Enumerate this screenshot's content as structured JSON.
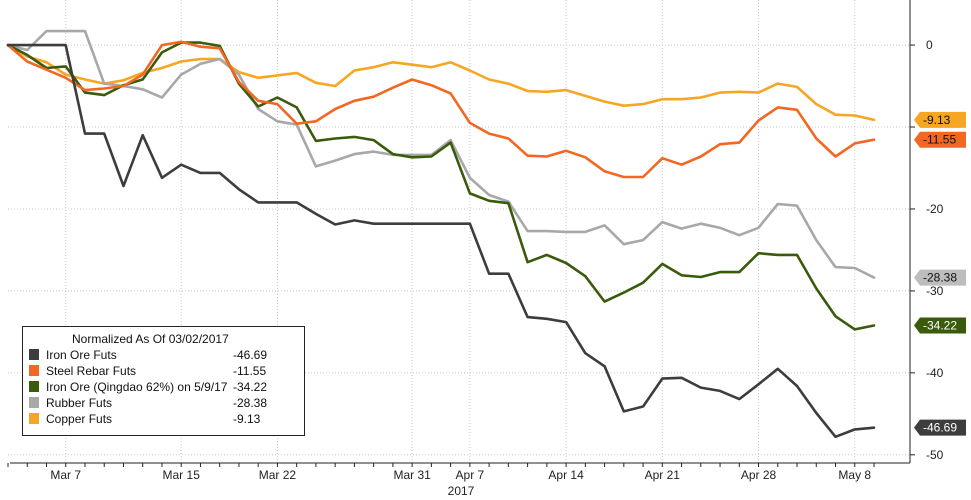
{
  "chart_data": {
    "type": "line",
    "x_dates": [
      "2017-03-02",
      "2017-03-03",
      "2017-03-06",
      "2017-03-07",
      "2017-03-08",
      "2017-03-09",
      "2017-03-10",
      "2017-03-13",
      "2017-03-14",
      "2017-03-15",
      "2017-03-16",
      "2017-03-17",
      "2017-03-20",
      "2017-03-21",
      "2017-03-22",
      "2017-03-23",
      "2017-03-24",
      "2017-03-27",
      "2017-03-28",
      "2017-03-29",
      "2017-03-30",
      "2017-03-31",
      "2017-04-05",
      "2017-04-06",
      "2017-04-07",
      "2017-04-10",
      "2017-04-11",
      "2017-04-12",
      "2017-04-13",
      "2017-04-14",
      "2017-04-17",
      "2017-04-18",
      "2017-04-19",
      "2017-04-20",
      "2017-04-21",
      "2017-04-24",
      "2017-04-25",
      "2017-04-26",
      "2017-04-27",
      "2017-04-28",
      "2017-05-02",
      "2017-05-03",
      "2017-05-04",
      "2017-05-05",
      "2017-05-08",
      "2017-05-09"
    ],
    "x_tick_labels": [
      {
        "date": "2017-03-07",
        "label": "Mar 7"
      },
      {
        "date": "2017-03-15",
        "label": "Mar 15"
      },
      {
        "date": "2017-03-22",
        "label": "Mar 22"
      },
      {
        "date": "2017-03-31",
        "label": "Mar 31"
      },
      {
        "date": "2017-04-07",
        "label": "Apr 7"
      },
      {
        "date": "2017-04-14",
        "label": "Apr 14"
      },
      {
        "date": "2017-04-21",
        "label": "Apr 21"
      },
      {
        "date": "2017-04-28",
        "label": "Apr 28"
      },
      {
        "date": "2017-05-08",
        "label": "May 8"
      }
    ],
    "year_label": "2017",
    "y_ticks": [
      0,
      -10,
      -20,
      -30,
      -40,
      -50
    ],
    "y_tick_labels": [
      "0",
      "",
      "-20",
      "-30",
      "-40",
      "-50"
    ],
    "ylim": [
      -51,
      5.5
    ],
    "grid": "dotted",
    "legend_placement": "bottom-left",
    "legend_title": "Normalized As Of 03/02/2017",
    "series": [
      {
        "name": "Iron Ore Futs",
        "color": "#3d3d3d",
        "tag_fill": "#3d3d3d",
        "tag_text_color": "#ffffff",
        "last_label": "-46.69",
        "legend_value": "-46.69",
        "values": [
          0,
          0,
          0,
          0,
          -10.8,
          -10.8,
          -17.2,
          -11,
          -16.2,
          -14.6,
          -15.6,
          -15.6,
          -17.6,
          -19.2,
          -19.2,
          -19.2,
          -20.6,
          -21.9,
          -21.4,
          -21.8,
          -21.8,
          -21.8,
          -21.8,
          -21.8,
          -21.8,
          -27.9,
          -27.9,
          -33.2,
          -33.4,
          -33.8,
          -37.6,
          -39.2,
          -44.7,
          -44.1,
          -40.7,
          -40.6,
          -41.8,
          -42.2,
          -43.2,
          -41.4,
          -39.5,
          -41.6,
          -44.9,
          -47.8,
          -46.9,
          -46.69
        ]
      },
      {
        "name": "Steel Rebar Futs",
        "color": "#f26722",
        "tag_fill": "#f26722",
        "tag_text_color": "#111111",
        "last_label": "-11.55",
        "legend_value": "-11.55",
        "values": [
          0,
          -2,
          -3,
          -4,
          -5.5,
          -5.3,
          -5,
          -3.6,
          0,
          0.4,
          -0.2,
          -0.4,
          -4.5,
          -6.8,
          -7.2,
          -9.6,
          -9.3,
          -7.8,
          -6.8,
          -6.3,
          -5.2,
          -4.2,
          -4.9,
          -5.9,
          -9.5,
          -10.8,
          -11.4,
          -13.5,
          -13.6,
          -12.9,
          -13.7,
          -15.4,
          -16.1,
          -16.1,
          -13.8,
          -14.6,
          -13.6,
          -12.1,
          -11.9,
          -9.2,
          -7.6,
          -7.9,
          -11.4,
          -13.6,
          -12,
          -11.55
        ]
      },
      {
        "name": "Iron Ore (Qingdao 62%) on 5/9/17",
        "color": "#3a5b0c",
        "tag_fill": "#3a5b0c",
        "tag_text_color": "#ffffff",
        "last_label": "-34.22",
        "legend_value": "-34.22",
        "values": [
          0,
          -1.2,
          -2.8,
          -2.6,
          -5.8,
          -6.1,
          -4.9,
          -4.2,
          -0.9,
          0.3,
          0.3,
          -0.1,
          -4.7,
          -7.5,
          -6.4,
          -7.6,
          -11.7,
          -11.4,
          -11.2,
          -11.6,
          -13.3,
          -13.7,
          -13.6,
          -11.9,
          -18.1,
          -19,
          -19.3,
          -26.5,
          -25.6,
          -26.6,
          -28.2,
          -31.3,
          -30.2,
          -29,
          -26.7,
          -28.1,
          -28.3,
          -27.7,
          -27.7,
          -25.4,
          -25.6,
          -25.6,
          -29.7,
          -33.1,
          -34.7,
          -34.22
        ]
      },
      {
        "name": "Rubber Futs",
        "color": "#a8a8a8",
        "tag_fill": "#bdbdbd",
        "tag_text_color": "#111111",
        "last_label": "-28.38",
        "legend_value": "-28.38",
        "values": [
          0,
          -0.6,
          1.7,
          1.7,
          1.7,
          -4.7,
          -5,
          -5.4,
          -6.4,
          -3.6,
          -2.3,
          -1.7,
          -3.6,
          -7.8,
          -9.3,
          -9.7,
          -14.8,
          -14.1,
          -13.3,
          -13,
          -13.4,
          -13.4,
          -13.4,
          -11.6,
          -16.2,
          -18.3,
          -19.1,
          -22.7,
          -22.7,
          -22.8,
          -22.8,
          -22,
          -24.3,
          -23.8,
          -21.6,
          -22.4,
          -21.8,
          -22.3,
          -23.2,
          -22.3,
          -19.4,
          -19.6,
          -23.8,
          -27.1,
          -27.2,
          -28.38
        ]
      },
      {
        "name": "Copper Futs",
        "color": "#f5a623",
        "tag_fill": "#f5a623",
        "tag_text_color": "#111111",
        "last_label": "-9.13",
        "legend_value": "-9.13",
        "values": [
          0,
          -1.4,
          -2.1,
          -3.6,
          -4.2,
          -4.7,
          -4.3,
          -3.4,
          -2.8,
          -2,
          -1.7,
          -1.7,
          -3.3,
          -4,
          -3.7,
          -3.4,
          -4.6,
          -5,
          -3.1,
          -2.7,
          -2.1,
          -2.4,
          -2.7,
          -2.1,
          -3.1,
          -4.2,
          -4.7,
          -5.6,
          -5.7,
          -5.5,
          -6.2,
          -6.9,
          -7.4,
          -7.2,
          -6.6,
          -6.6,
          -6.4,
          -5.8,
          -5.7,
          -5.8,
          -4.7,
          -5.1,
          -7.2,
          -8.5,
          -8.6,
          -9.13
        ]
      }
    ]
  }
}
